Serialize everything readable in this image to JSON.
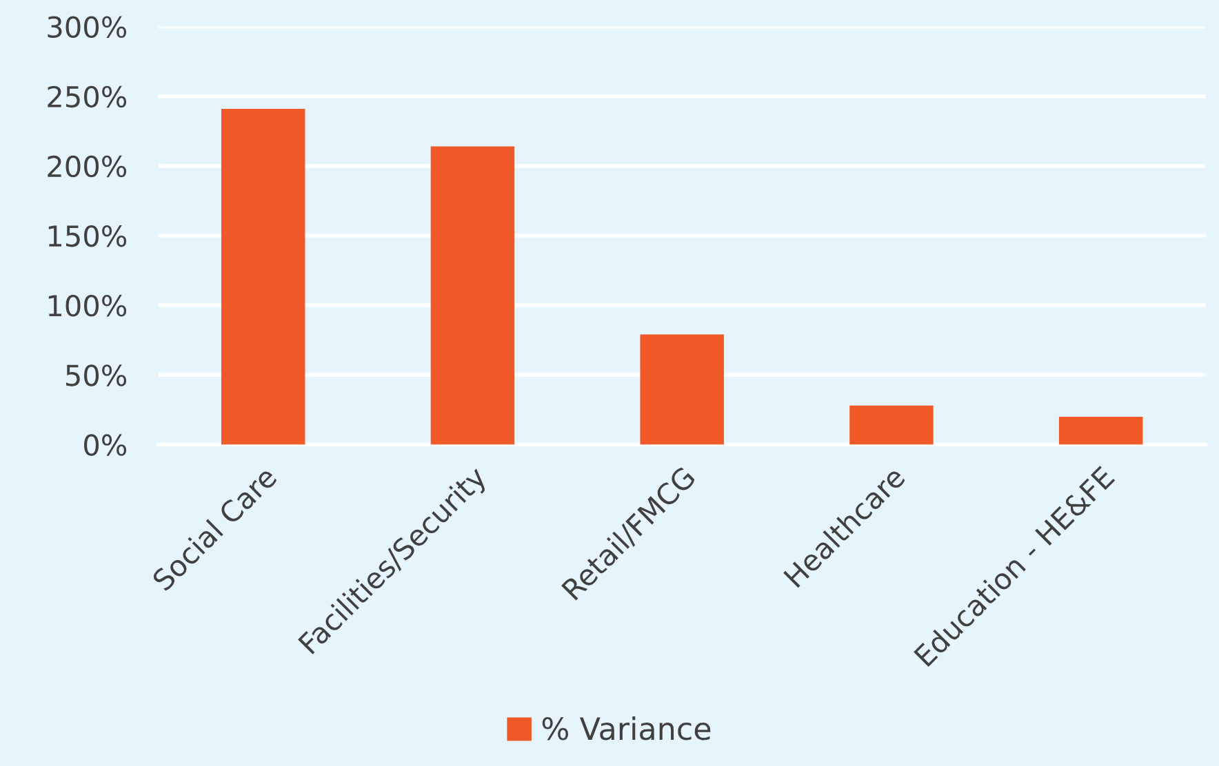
{
  "chart_data": {
    "type": "bar",
    "categories": [
      "Social Care",
      "Facilities/Security",
      "Retail/FMCG",
      "Healthcare",
      "Education - HE&FE"
    ],
    "series": [
      {
        "name": "% Variance",
        "color": "#f05a28",
        "values": [
          241,
          214,
          79,
          28,
          20
        ]
      }
    ],
    "ylim": [
      0,
      300
    ],
    "yticks": [
      {
        "value": 0,
        "label": "0%"
      },
      {
        "value": 50,
        "label": "50%"
      },
      {
        "value": 100,
        "label": "100%"
      },
      {
        "value": 150,
        "label": "150%"
      },
      {
        "value": 200,
        "label": "200%"
      },
      {
        "value": 250,
        "label": "250%"
      },
      {
        "value": 300,
        "label": "300%"
      }
    ],
    "grid": "y",
    "legend": "bottom"
  }
}
